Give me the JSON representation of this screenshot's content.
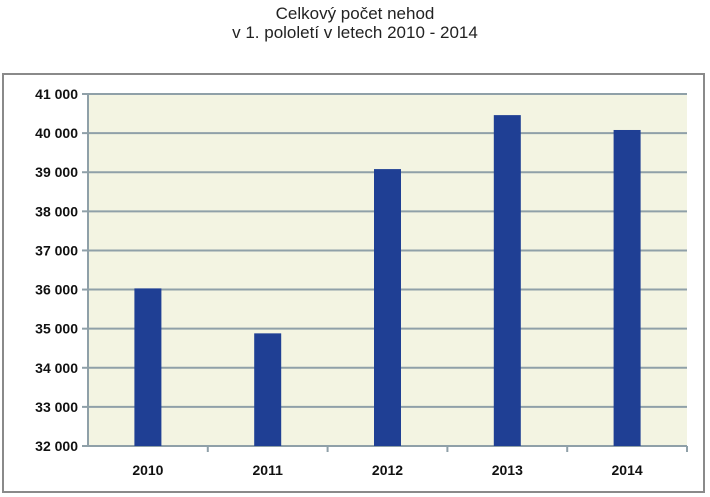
{
  "chart_data": {
    "type": "bar",
    "title_line1": "Celkový počet nehod",
    "title_line2": "v 1. pololetí v letech 2010 - 2014",
    "categories": [
      "2010",
      "2011",
      "2012",
      "2013",
      "2014"
    ],
    "values": [
      36030,
      34880,
      39080,
      40460,
      40080
    ],
    "xlabel": "",
    "ylabel": "",
    "ylim": [
      32000,
      41000
    ],
    "yticks": [
      32000,
      33000,
      34000,
      35000,
      36000,
      37000,
      38000,
      39000,
      40000,
      41000
    ],
    "ytick_labels": [
      "32 000",
      "33 000",
      "34 000",
      "35 000",
      "36 000",
      "37 000",
      "38 000",
      "39 000",
      "40 000",
      "41 000"
    ],
    "grid": true,
    "colors": {
      "bar": "#1f3f94",
      "plot_background": "#f3f4e2",
      "grid": "#8fa0a8",
      "frame": "#8a8a8a"
    }
  }
}
